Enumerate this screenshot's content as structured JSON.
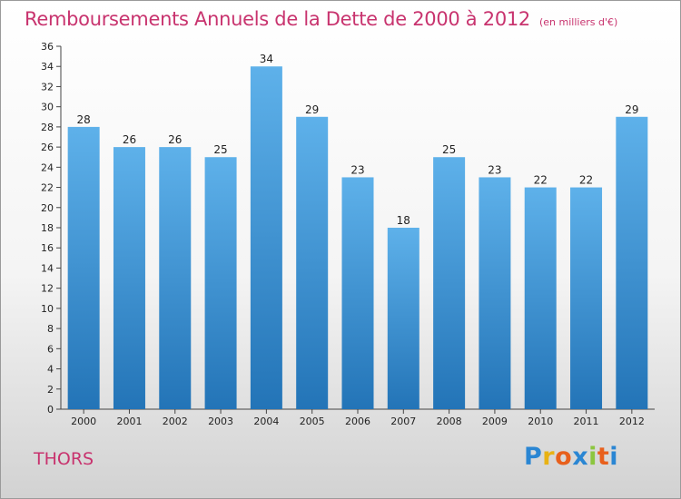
{
  "chart_data": {
    "type": "bar",
    "title": "Remboursements Annuels de la Dette de 2000 à 2012",
    "subtitle": "(en milliers d'€)",
    "categories": [
      "2000",
      "2001",
      "2002",
      "2003",
      "2004",
      "2005",
      "2006",
      "2007",
      "2008",
      "2009",
      "2010",
      "2011",
      "2012"
    ],
    "values": [
      28,
      26,
      26,
      25,
      34,
      29,
      23,
      18,
      25,
      23,
      22,
      22,
      29
    ],
    "xlabel": "",
    "ylabel": "",
    "ylim": [
      0,
      36
    ],
    "ytick_step": 2,
    "grid": false,
    "bar_color_top": "#5eb1ea",
    "bar_color_bottom": "#2374b7"
  },
  "commune": "THORS",
  "logo": {
    "letters": [
      "P",
      "r",
      "o",
      "x",
      "i",
      "t",
      "i"
    ],
    "colors": [
      "#2a86d3",
      "#e8b214",
      "#e8601c",
      "#2a86d3",
      "#8cc63f",
      "#e8601c",
      "#2a86d3"
    ]
  }
}
